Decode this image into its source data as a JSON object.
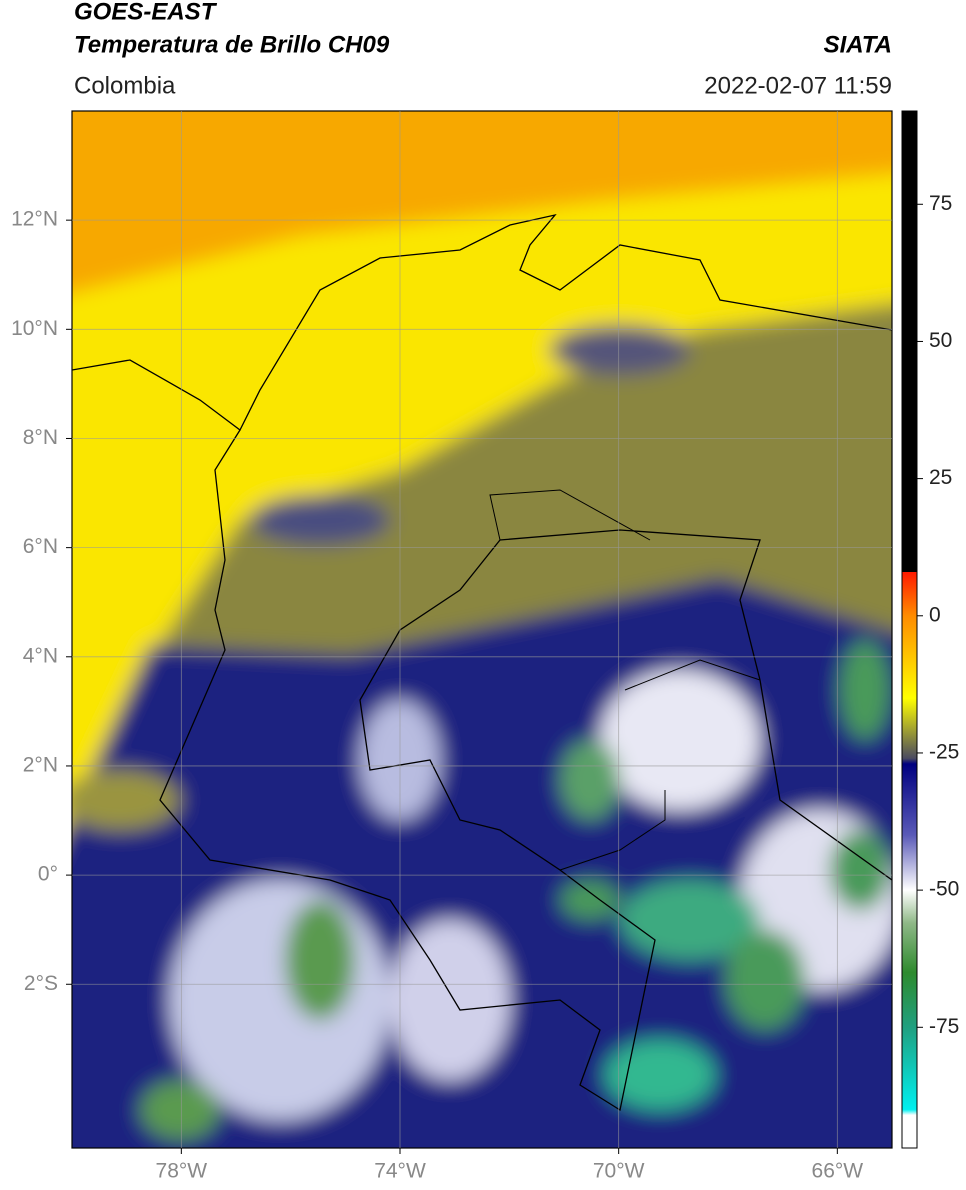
{
  "chart_data": {
    "type": "map",
    "title": "GOES-EAST",
    "subtitle": "Temperatura de Brillo CH09",
    "source": "SIATA",
    "region": "Colombia",
    "date": "2022-02-07 11:59",
    "xlim": [
      -80,
      -65
    ],
    "ylim": [
      -5,
      14
    ],
    "xticks": [
      {
        "value": -78,
        "label": "78°W"
      },
      {
        "value": -74,
        "label": "74°W"
      },
      {
        "value": -70,
        "label": "70°W"
      },
      {
        "value": -66,
        "label": "66°W"
      }
    ],
    "yticks": [
      {
        "value": -2,
        "label": "2°S"
      },
      {
        "value": 0,
        "label": "0°"
      },
      {
        "value": 2,
        "label": "2°N"
      },
      {
        "value": 4,
        "label": "4°N"
      },
      {
        "value": 6,
        "label": "6°N"
      },
      {
        "value": 8,
        "label": "8°N"
      },
      {
        "value": 10,
        "label": "10°N"
      },
      {
        "value": 12,
        "label": "12°N"
      }
    ],
    "grid": true,
    "clim": [
      -97,
      92
    ],
    "cticks": [
      75,
      50,
      25,
      0,
      -25,
      -50,
      -75
    ],
    "colormap": [
      {
        "value": 92,
        "color": "#000000"
      },
      {
        "value": 8,
        "color": "#000000"
      },
      {
        "value": 8,
        "color": "#ff1a00"
      },
      {
        "value": 0,
        "color": "#ff8c00"
      },
      {
        "value": -15,
        "color": "#ffff00"
      },
      {
        "value": -22,
        "color": "#8c8c3c"
      },
      {
        "value": -26,
        "color": "#4a4a60"
      },
      {
        "value": -27,
        "color": "#000080"
      },
      {
        "value": -40,
        "color": "#5a5ab8"
      },
      {
        "value": -50,
        "color": "#ffffff"
      },
      {
        "value": -56,
        "color": "#8fb887"
      },
      {
        "value": -65,
        "color": "#2e8b2e"
      },
      {
        "value": -75,
        "color": "#20a080"
      },
      {
        "value": -90,
        "color": "#00f0f0"
      },
      {
        "value": -91,
        "color": "#ffffff"
      },
      {
        "value": -97,
        "color": "#ffffff"
      }
    ]
  }
}
